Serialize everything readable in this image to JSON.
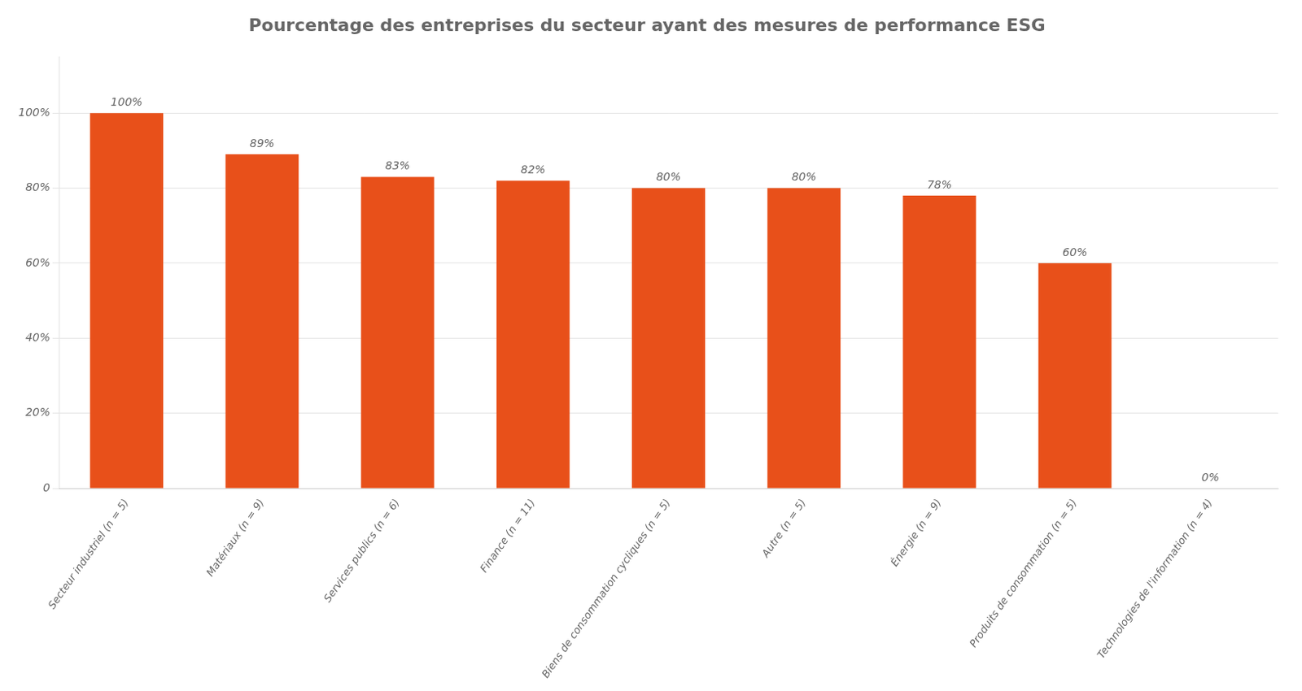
{
  "chart_data": {
    "type": "bar",
    "title": "Pourcentage des entreprises du secteur ayant des mesures de performance ESG",
    "categories": [
      "Secteur industriel (n = 5)",
      "Matériaux (n = 9)",
      "Services publics (n = 6)",
      "Finance (n = 11)",
      "Biens de consommation cycliques (n = 5)",
      "Autre (n = 5)",
      "Énergie (n = 9)",
      "Produits de consommation (n = 5)",
      "Technologies de l'information (n = 4)"
    ],
    "values": [
      100,
      89,
      83,
      82,
      80,
      80,
      78,
      60,
      0
    ],
    "value_labels": [
      "100%",
      "89%",
      "83%",
      "82%",
      "80%",
      "80%",
      "78%",
      "60%",
      "0%"
    ],
    "data_labels": true,
    "color": "#E8501A",
    "ylim": [
      0,
      115
    ],
    "yticks": [
      0,
      {
        "value": 20,
        "label": "20%"
      },
      {
        "value": 40,
        "label": "40%"
      },
      {
        "value": 60,
        "label": "60%"
      },
      {
        "value": 80,
        "label": "80%"
      },
      {
        "value": 100,
        "label": "100%"
      }
    ],
    "grid": true
  }
}
